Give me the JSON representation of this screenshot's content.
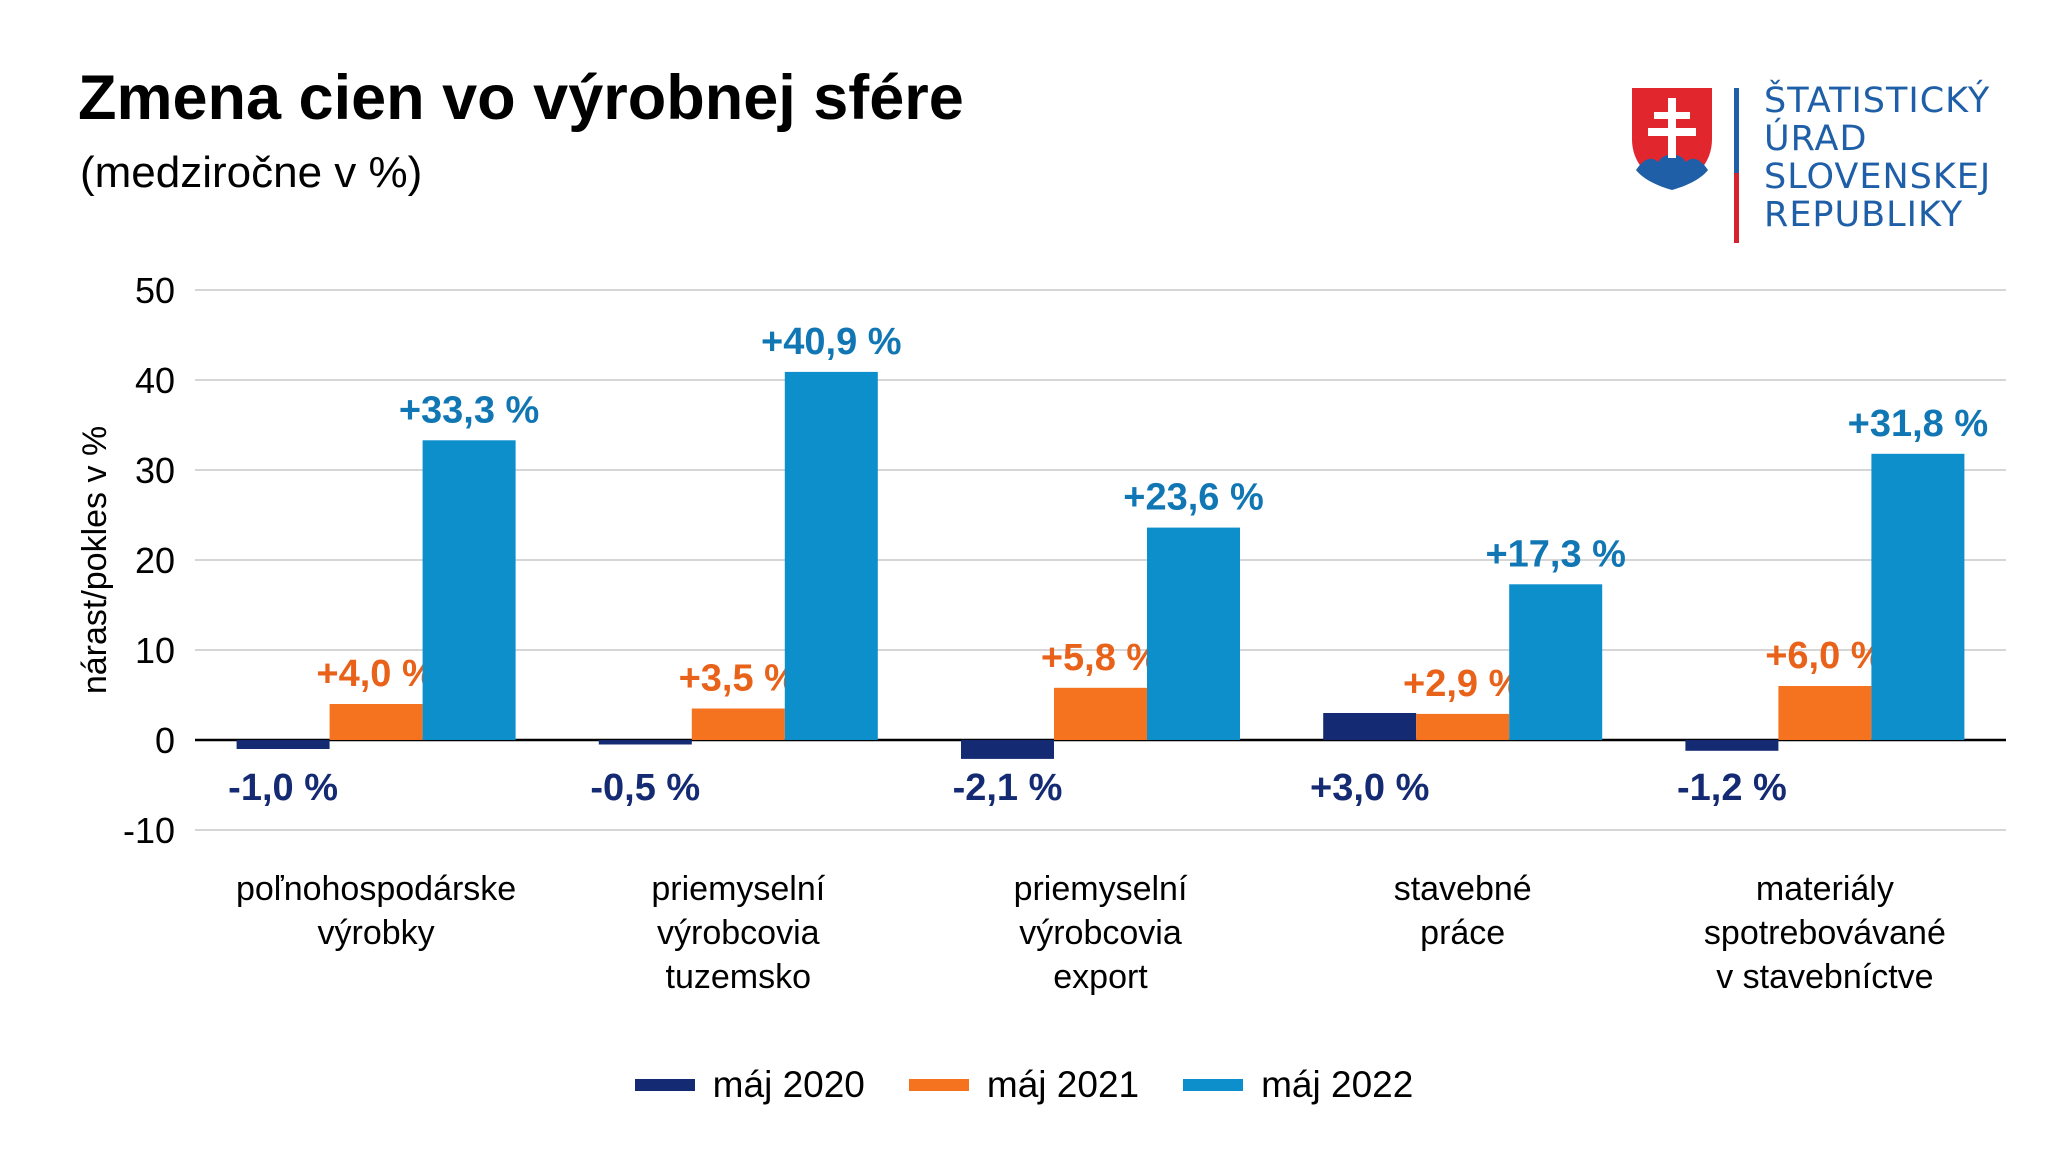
{
  "header": {
    "title": "Zmena cien vo výrobnej sfére",
    "subtitle": "(medziročne v %)"
  },
  "logo": {
    "icon": "slovak-coat-of-arms-icon",
    "lines": [
      "ŠTATISTICKÝ",
      "ÚRAD",
      "SLOVENSKEJ",
      "REPUBLIKY"
    ]
  },
  "chart_data": {
    "type": "bar",
    "ylabel": "nárast/pokles v %",
    "ylim": [
      -10,
      50
    ],
    "yticks": [
      50,
      40,
      30,
      20,
      10,
      0,
      -10
    ],
    "grid": true,
    "legend_position": "bottom",
    "categories": [
      [
        "poľnohospodárske",
        "výrobky"
      ],
      [
        "priemyselní",
        "výrobcovia",
        "tuzemsko"
      ],
      [
        "priemyselní",
        "výrobcovia",
        "export"
      ],
      [
        "stavebné",
        "práce"
      ],
      [
        "materiály",
        "spotrebovávané",
        "v stavebníctve"
      ]
    ],
    "series": [
      {
        "name": "máj 2020",
        "color": "#142b73",
        "values": [
          -1.0,
          -0.5,
          -2.1,
          3.0,
          -1.2
        ],
        "labels": [
          "-1,0 %",
          "-0,5 %",
          "-2,1 %",
          "+3,0 %",
          "-1,2 %"
        ]
      },
      {
        "name": "máj 2021",
        "color": "#f5731e",
        "values": [
          4.0,
          3.5,
          5.8,
          2.9,
          6.0
        ],
        "labels": [
          "+4,0 %",
          "+3,5 %",
          "+5,8 %",
          "+2,9 %",
          "+6,0 %"
        ]
      },
      {
        "name": "máj 2022",
        "color": "#0d8fcc",
        "values": [
          33.3,
          40.9,
          23.6,
          17.3,
          31.8
        ],
        "labels": [
          "+33,3 %",
          "+40,9 %",
          "+23,6 %",
          "+17,3 %",
          "+31,8 %"
        ]
      }
    ]
  }
}
